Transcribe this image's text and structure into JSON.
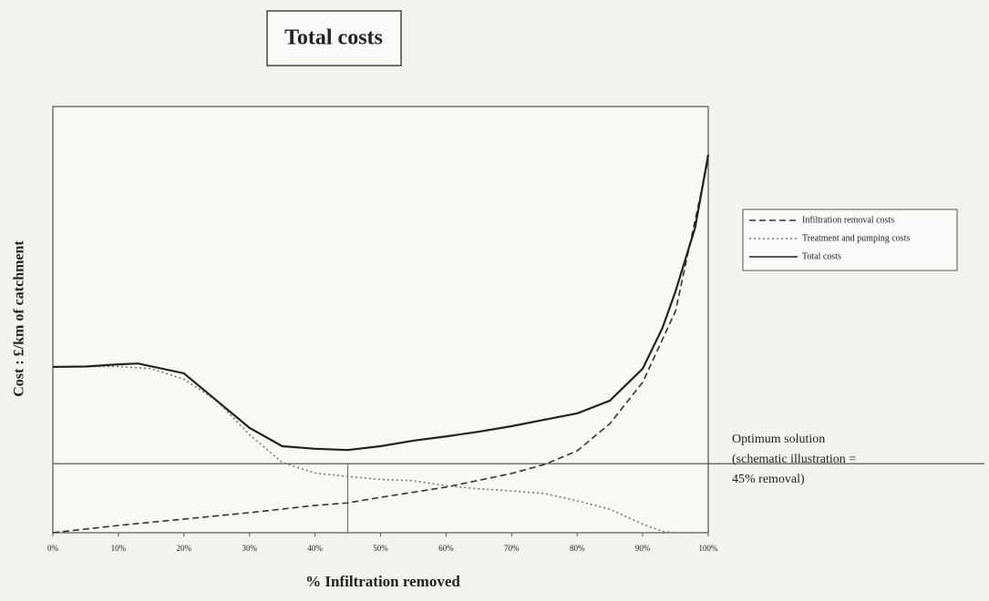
{
  "chart_data": {
    "type": "line",
    "title": "Total costs",
    "x_label": "% Infiltration removed",
    "y_label": "Cost : £/km of catchment",
    "xlim": [
      0,
      100
    ],
    "ylim": [
      0,
      100
    ],
    "xticks": [
      {
        "value": 0,
        "label": "0%"
      },
      {
        "value": 10,
        "label": "10%"
      },
      {
        "value": 20,
        "label": "20%"
      },
      {
        "value": 30,
        "label": "30%"
      },
      {
        "value": 40,
        "label": "40%"
      },
      {
        "value": 50,
        "label": "50%"
      },
      {
        "value": 60,
        "label": "60%"
      },
      {
        "value": 70,
        "label": "70%"
      },
      {
        "value": 80,
        "label": "80%"
      },
      {
        "value": 90,
        "label": "90%"
      },
      {
        "value": 100,
        "label": "100%"
      }
    ],
    "series": [
      {
        "name": "Infiltration removal costs",
        "color": "#333333",
        "dash": "dashed",
        "x": [
          0,
          10,
          20,
          30,
          40,
          45,
          50,
          60,
          70,
          75,
          80,
          85,
          90,
          95,
          100
        ],
        "values": [
          0,
          1.7,
          3.2,
          4.7,
          6.4,
          7,
          8.3,
          10.7,
          13.9,
          16,
          19.2,
          25.6,
          35.3,
          52,
          87.6
        ]
      },
      {
        "name": "Treatment and pumping costs",
        "color": "#777777",
        "dash": "dotted",
        "x": [
          0,
          10,
          15,
          20,
          25,
          30,
          35,
          40,
          45,
          50,
          55,
          60,
          65,
          70,
          75,
          80,
          85,
          90,
          93,
          95,
          100
        ],
        "values": [
          39,
          39,
          38.5,
          36,
          31,
          23,
          16.5,
          14,
          13.2,
          12.5,
          12.2,
          11,
          10.3,
          9.8,
          9.2,
          7.5,
          5.5,
          2,
          0.3,
          0,
          0
        ]
      },
      {
        "name": "Total costs",
        "color": "#222222",
        "dash": "solid",
        "x": [
          0,
          5,
          10,
          13,
          20,
          25,
          30,
          35,
          40,
          45,
          50,
          55,
          60,
          65,
          70,
          75,
          80,
          85,
          90,
          93,
          95,
          98,
          100
        ],
        "values": [
          38.9,
          39,
          39.5,
          39.7,
          37.4,
          31,
          24.6,
          20.3,
          19.7,
          19.4,
          20.3,
          21.6,
          22.6,
          23.7,
          25,
          26.5,
          28,
          31,
          38.5,
          48,
          56.6,
          71.6,
          88.7
        ]
      }
    ],
    "optimum": {
      "x": 45,
      "y": 16.2
    },
    "annotation": [
      "Optimum solution",
      "(schematic illustration =",
      "45% removal)"
    ],
    "legend": "right"
  }
}
